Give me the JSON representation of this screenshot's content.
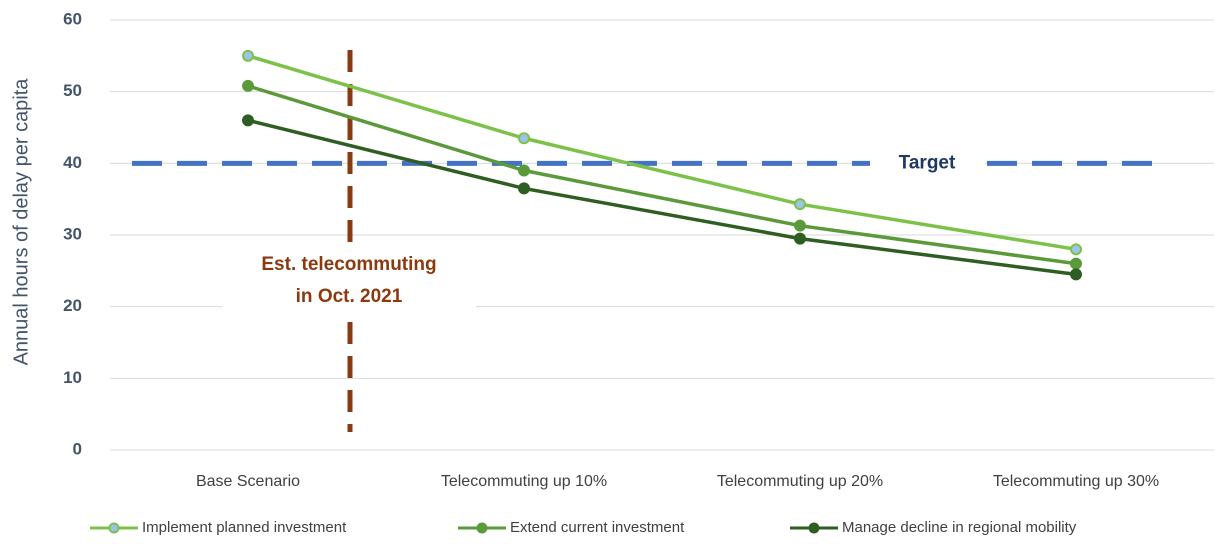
{
  "chart_data": {
    "type": "line",
    "y_label": "Annual hours of delay per capita",
    "categories": [
      "Base Scenario",
      "Telecommuting up 10%",
      "Telecommuting up 20%",
      "Telecommuting up 30%"
    ],
    "series": [
      {
        "name": "Implement planned investment",
        "color": "#7cc24a",
        "marker_fill": "#9dc3e6",
        "values": [
          55,
          43.5,
          34.3,
          28
        ]
      },
      {
        "name": "Extend current investment",
        "color": "#5b9a3b",
        "marker_fill": "#5b9a3b",
        "values": [
          50.8,
          39,
          31.3,
          26
        ]
      },
      {
        "name": "Manage decline in regional mobility",
        "color": "#2f5e22",
        "marker_fill": "#2f5e22",
        "values": [
          46,
          36.5,
          29.5,
          24.5
        ]
      }
    ],
    "ylim": [
      0,
      60
    ],
    "yticks": [
      0,
      10,
      20,
      30,
      40,
      50,
      60
    ],
    "grid": true,
    "legend": "bottom",
    "target": {
      "value": 40,
      "label": "Target",
      "color": "#4472c4"
    },
    "annotation": [
      "Est. telecommuting",
      "in Oct. 2021"
    ],
    "annotation_color": "#8b3a0f"
  }
}
